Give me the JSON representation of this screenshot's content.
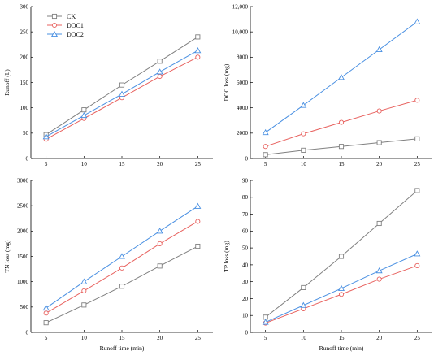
{
  "chart_data": [
    {
      "type": "line",
      "xlabel": "",
      "ylabel": "Runoff (L)",
      "x": [
        5,
        10,
        15,
        20,
        25
      ],
      "xlim": [
        3,
        27
      ],
      "ylim": [
        0,
        300
      ],
      "yticks": [
        0,
        50,
        100,
        150,
        200,
        250,
        300
      ],
      "ytick_labels": [
        "0",
        "50",
        "100",
        "150",
        "200",
        "250",
        "300"
      ],
      "xticks": [
        5,
        10,
        15,
        20,
        25
      ],
      "grid": false,
      "legend": "top-left",
      "series": [
        {
          "name": "CK",
          "color": "#808080",
          "marker": "square",
          "values": [
            47,
            96,
            145,
            192,
            240
          ]
        },
        {
          "name": "DOC1",
          "color": "#e8625f",
          "marker": "circle",
          "values": [
            38,
            79,
            120,
            162,
            200
          ]
        },
        {
          "name": "DOC2",
          "color": "#4a90e2",
          "marker": "triangle",
          "values": [
            43,
            85,
            127,
            171,
            213
          ]
        }
      ]
    },
    {
      "type": "line",
      "xlabel": "",
      "ylabel": "DOC loss (mg)",
      "x": [
        5,
        10,
        15,
        20,
        25
      ],
      "xlim": [
        3,
        27
      ],
      "ylim": [
        0,
        12000
      ],
      "yticks": [
        0,
        2000,
        4000,
        6000,
        8000,
        10000,
        12000
      ],
      "ytick_labels": [
        "0",
        "2000",
        "4000",
        "6000",
        "8000",
        "10,000",
        "12,000"
      ],
      "xticks": [
        5,
        10,
        15,
        20,
        25
      ],
      "grid": false,
      "series": [
        {
          "name": "CK",
          "color": "#808080",
          "marker": "square",
          "values": [
            300,
            650,
            950,
            1250,
            1550
          ]
        },
        {
          "name": "DOC1",
          "color": "#e8625f",
          "marker": "circle",
          "values": [
            950,
            1950,
            2850,
            3750,
            4600
          ]
        },
        {
          "name": "DOC2",
          "color": "#4a90e2",
          "marker": "triangle",
          "values": [
            2050,
            4200,
            6400,
            8600,
            10800
          ]
        }
      ]
    },
    {
      "type": "line",
      "xlabel": "Runoff time (min)",
      "ylabel": "TN loss (mg)",
      "x": [
        5,
        10,
        15,
        20,
        25
      ],
      "xlim": [
        3,
        27
      ],
      "ylim": [
        0,
        3000
      ],
      "yticks": [
        0,
        500,
        1000,
        1500,
        2000,
        2500,
        3000
      ],
      "ytick_labels": [
        "0",
        "500",
        "1000",
        "1500",
        "2000",
        "2500",
        "3000"
      ],
      "xticks": [
        5,
        10,
        15,
        20,
        25
      ],
      "grid": false,
      "series": [
        {
          "name": "CK",
          "color": "#808080",
          "marker": "square",
          "values": [
            190,
            540,
            910,
            1310,
            1700
          ]
        },
        {
          "name": "DOC1",
          "color": "#e8625f",
          "marker": "circle",
          "values": [
            380,
            820,
            1270,
            1750,
            2190
          ]
        },
        {
          "name": "DOC2",
          "color": "#4a90e2",
          "marker": "triangle",
          "values": [
            480,
            1000,
            1500,
            2000,
            2490
          ]
        }
      ]
    },
    {
      "type": "line",
      "xlabel": "Runoff time (min)",
      "ylabel": "TP loss (mg)",
      "x": [
        5,
        10,
        15,
        20,
        25
      ],
      "xlim": [
        3,
        27
      ],
      "ylim": [
        0,
        90
      ],
      "yticks": [
        0,
        10,
        20,
        30,
        40,
        50,
        60,
        70,
        80,
        90
      ],
      "ytick_labels": [
        "0",
        "10",
        "20",
        "30",
        "40",
        "50",
        "60",
        "70",
        "80",
        "90"
      ],
      "xticks": [
        5,
        10,
        15,
        20,
        25
      ],
      "grid": false,
      "series": [
        {
          "name": "CK",
          "color": "#808080",
          "marker": "square",
          "values": [
            9,
            26.5,
            45,
            64.5,
            84
          ]
        },
        {
          "name": "DOC1",
          "color": "#e8625f",
          "marker": "circle",
          "values": [
            5.5,
            14,
            22.5,
            31.5,
            39.5
          ]
        },
        {
          "name": "DOC2",
          "color": "#4a90e2",
          "marker": "triangle",
          "values": [
            6,
            16,
            26,
            36.5,
            46.5
          ]
        }
      ]
    }
  ]
}
